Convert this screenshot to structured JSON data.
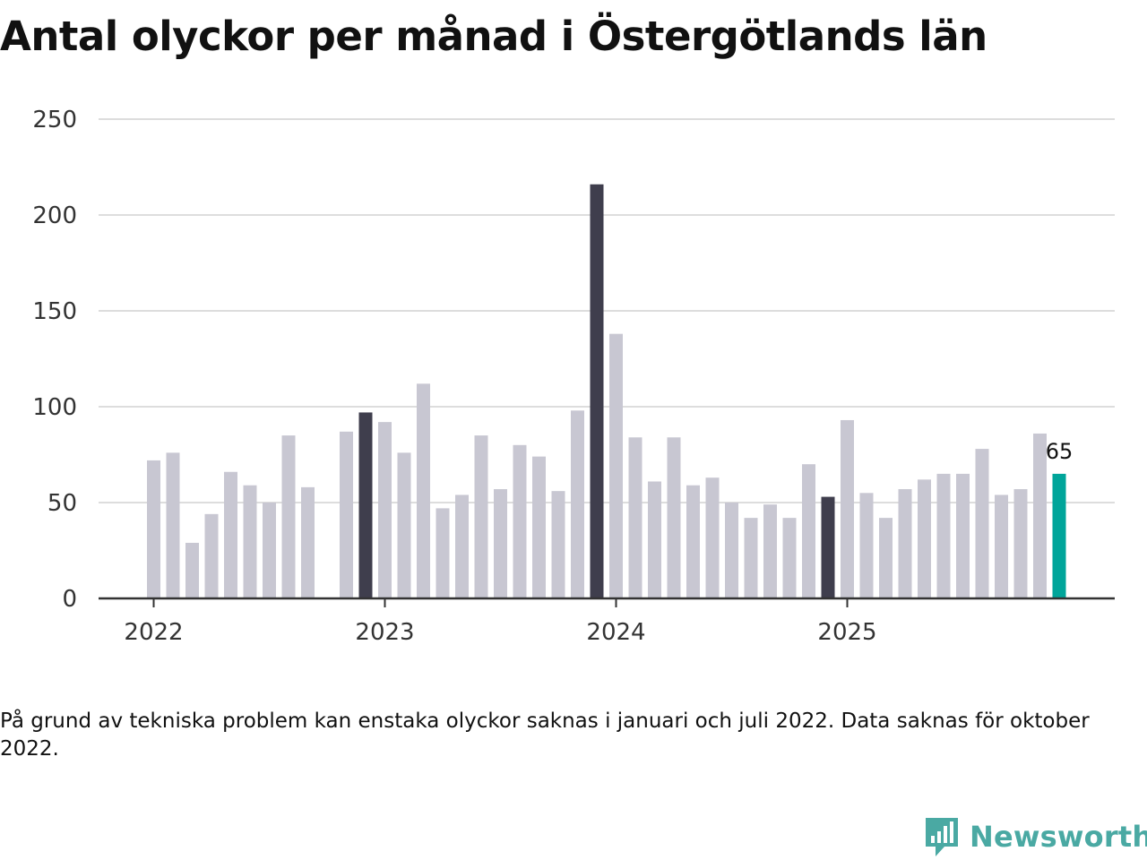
{
  "title": "Antal olyckor per månad i Östergötlands län",
  "note": "På grund av tekniska problem kan enstaka olyckor saknas i januari och juli 2022. Data saknas för oktober 2022.",
  "brand": {
    "name": "Newsworthy"
  },
  "colors": {
    "default": "#c8c7d2",
    "december": "#3f3e4d",
    "latest": "#00a59a",
    "grid": "#dddddd",
    "axis": "#333333"
  },
  "chart_data": {
    "type": "bar",
    "title": "Antal olyckor per månad i Östergötlands län",
    "xlabel": "",
    "ylabel": "",
    "ylim": [
      0,
      250
    ],
    "yticks": [
      "0",
      "50",
      "100",
      "150",
      "200",
      "250"
    ],
    "xticks": [
      "2022",
      "2023",
      "2024",
      "2025"
    ],
    "xtick_index": [
      0,
      12,
      24,
      36
    ],
    "categories": [
      "2022-01",
      "2022-02",
      "2022-03",
      "2022-04",
      "2022-05",
      "2022-06",
      "2022-07",
      "2022-08",
      "2022-09",
      "2022-10",
      "2022-11",
      "2022-12",
      "2023-01",
      "2023-02",
      "2023-03",
      "2023-04",
      "2023-05",
      "2023-06",
      "2023-07",
      "2023-08",
      "2023-09",
      "2023-10",
      "2023-11",
      "2023-12",
      "2024-01",
      "2024-02",
      "2024-03",
      "2024-04",
      "2024-05",
      "2024-06",
      "2024-07",
      "2024-08",
      "2024-09",
      "2024-10",
      "2024-11",
      "2024-12",
      "2025-01",
      "2025-02",
      "2025-03",
      "2025-04",
      "2025-05",
      "2025-06",
      "2025-07",
      "2025-08",
      "2025-09",
      "2025-10",
      "2025-11",
      "2025-12"
    ],
    "values": [
      72,
      76,
      29,
      44,
      66,
      59,
      50,
      85,
      58,
      null,
      87,
      97,
      92,
      76,
      112,
      47,
      54,
      85,
      57,
      80,
      74,
      56,
      98,
      216,
      138,
      84,
      61,
      84,
      59,
      63,
      50,
      42,
      49,
      42,
      70,
      53,
      93,
      55,
      42,
      57,
      62,
      65,
      65,
      78,
      54,
      57,
      86,
      65
    ],
    "highlight": "december",
    "last_value_label": "65"
  }
}
